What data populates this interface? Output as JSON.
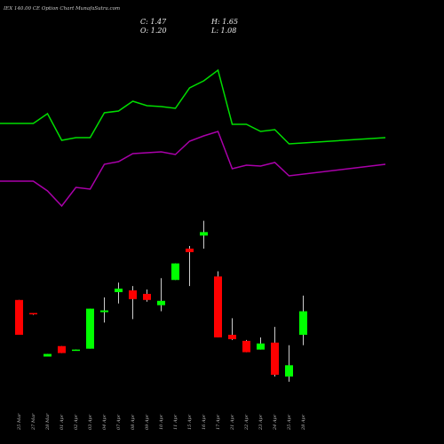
{
  "header": {
    "title": "IEX 140.00 CE Option  Chart MunafaSutra.com",
    "close_label": "C: 1.47",
    "high_label": "H: 1.65",
    "open_label": "O: 1.20",
    "low_label": "L: 1.08"
  },
  "colors": {
    "background": "#000000",
    "up": "#00ff00",
    "down": "#ff0000",
    "upper_line": "#00dd00",
    "lower_line": "#aa00aa",
    "wick": "#ffffff"
  },
  "chart_data": {
    "type": "candlestick",
    "x_axis_labels": [
      "25 Mar",
      "27 Mar",
      "28 Mar",
      "01 Apr",
      "02 Apr",
      "03 Apr",
      "04 Apr",
      "07 Apr",
      "08 Apr",
      "09 Apr",
      "10 Apr",
      "11 Apr",
      "15 Apr",
      "16 Apr",
      "17 Apr",
      "21 Apr",
      "22 Apr",
      "23 Apr",
      "24 Apr",
      "25 Apr",
      "28 Apr"
    ],
    "candles": [
      {
        "date": "25 Mar",
        "open": 1.6,
        "high": 1.6,
        "low": 1.2,
        "close": 1.2
      },
      {
        "date": "27 Mar",
        "open": 1.45,
        "high": 1.45,
        "low": 1.43,
        "close": 1.44
      },
      {
        "date": "28 Mar",
        "open": 0.95,
        "high": 0.98,
        "low": 0.95,
        "close": 0.98
      },
      {
        "date": "01 Apr",
        "open": 1.07,
        "high": 1.07,
        "low": 0.99,
        "close": 0.99
      },
      {
        "date": "02 Apr",
        "open": 1.03,
        "high": 1.03,
        "low": 1.02,
        "close": 1.03
      },
      {
        "date": "03 Apr",
        "open": 1.04,
        "high": 1.5,
        "low": 1.04,
        "close": 1.5
      },
      {
        "date": "04 Apr",
        "open": 1.46,
        "high": 1.63,
        "low": 1.34,
        "close": 1.48
      },
      {
        "date": "07 Apr",
        "open": 1.69,
        "high": 1.8,
        "low": 1.56,
        "close": 1.73
      },
      {
        "date": "08 Apr",
        "open": 1.71,
        "high": 1.76,
        "low": 1.38,
        "close": 1.61
      },
      {
        "date": "09 Apr",
        "open": 1.67,
        "high": 1.72,
        "low": 1.58,
        "close": 1.6
      },
      {
        "date": "10 Apr",
        "open": 1.54,
        "high": 1.85,
        "low": 1.47,
        "close": 1.59
      },
      {
        "date": "11 Apr",
        "open": 1.83,
        "high": 2.02,
        "low": 1.83,
        "close": 2.02
      },
      {
        "date": "15 Apr",
        "open": 2.19,
        "high": 2.22,
        "low": 1.76,
        "close": 2.15
      },
      {
        "date": "16 Apr",
        "open": 2.34,
        "high": 2.51,
        "low": 2.19,
        "close": 2.38
      },
      {
        "date": "17 Apr",
        "open": 1.87,
        "high": 1.93,
        "low": 1.17,
        "close": 1.17
      },
      {
        "date": "21 Apr",
        "open": 1.2,
        "high": 1.39,
        "low": 1.14,
        "close": 1.15
      },
      {
        "date": "22 Apr",
        "open": 1.13,
        "high": 1.14,
        "low": 1.0,
        "close": 1.0
      },
      {
        "date": "23 Apr",
        "open": 1.03,
        "high": 1.17,
        "low": 1.03,
        "close": 1.1
      },
      {
        "date": "24 Apr",
        "open": 1.11,
        "high": 1.29,
        "low": 0.72,
        "close": 0.74
      },
      {
        "date": "25 Apr",
        "open": 0.72,
        "high": 1.08,
        "low": 0.66,
        "close": 0.85
      },
      {
        "date": "28 Apr",
        "open": 1.2,
        "high": 1.65,
        "low": 1.08,
        "close": 1.47
      }
    ],
    "upper_line": [
      139,
      139,
      128,
      158,
      155,
      155,
      127,
      125,
      114,
      119,
      120,
      122,
      99,
      91,
      79,
      140,
      140,
      148,
      146,
      162,
      155
    ],
    "lower_line": [
      204,
      204,
      215,
      232,
      211,
      213,
      185,
      182,
      173,
      172,
      171,
      174,
      159,
      153,
      148,
      190,
      186,
      187,
      183,
      198,
      185
    ]
  }
}
